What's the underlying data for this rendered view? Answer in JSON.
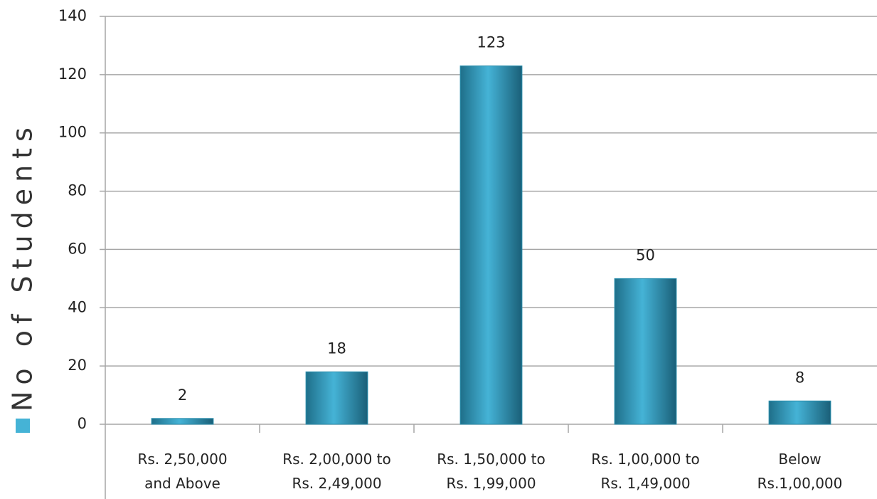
{
  "chart_data": {
    "type": "bar",
    "categories": [
      "Rs. 2,50,000\nand Above",
      "Rs. 2,00,000 to\nRs. 2,49,000",
      "Rs. 1,50,000 to\nRs. 1,99,000",
      "Rs. 1,00,000 to\nRs. 1,49,000",
      "Below\nRs.1,00,000"
    ],
    "series": [
      {
        "name": "No of Students",
        "color": "#45b3d6",
        "values": [
          2,
          18,
          123,
          50,
          8
        ]
      }
    ],
    "ylim": [
      0,
      140
    ],
    "yticks": [
      0,
      20,
      40,
      60,
      80,
      100,
      120,
      140
    ],
    "grid": true,
    "legend": "left"
  }
}
